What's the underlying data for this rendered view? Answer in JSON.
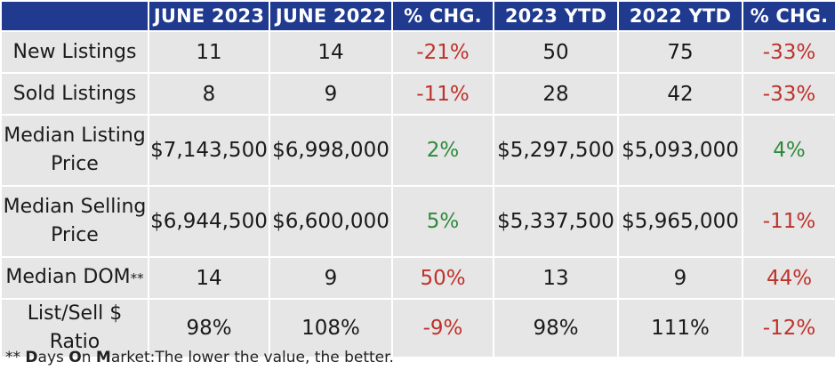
{
  "header": [
    "",
    "JUNE 2023",
    "JUNE 2022",
    "% CHG.",
    "2023 YTD",
    "2022 YTD",
    "% CHG."
  ],
  "rows": [
    {
      "label": "New Listings",
      "cells": [
        "11",
        "14",
        "-21%",
        "50",
        "75",
        "-33%"
      ]
    },
    {
      "label": "Sold Listings",
      "cells": [
        "8",
        "9",
        "-11%",
        "28",
        "42",
        "-33%"
      ]
    },
    {
      "label": "Median Listing Price",
      "cells": [
        "$7,143,500",
        "$6,998,000",
        "2%",
        "$5,297,500",
        "$5,093,000",
        "4%"
      ]
    },
    {
      "label": "Median Selling Price",
      "cells": [
        "$6,944,500",
        "$6,600,000",
        "5%",
        "$5,337,500",
        "$5,965,000",
        "-11%"
      ]
    },
    {
      "label": "Median DOM",
      "label_mark": "**",
      "cells": [
        "14",
        "9",
        "50%",
        "13",
        "9",
        "44%"
      ]
    },
    {
      "label": "List/Sell $ Ratio",
      "cells": [
        "98%",
        "108%",
        "-9%",
        "98%",
        "111%",
        "-12%"
      ]
    }
  ],
  "footnote": {
    "marker": "**",
    "d": "D",
    "ays": "ays ",
    "o": "O",
    "n": "n ",
    "m": "M",
    "arket": "arket:",
    "rest": "The lower the value, the better."
  },
  "colors": {
    "header_bg": "#1f3a8f",
    "cell_bg": "#e6e6e6",
    "negative": "#c0312b",
    "positive": "#2e8a3a"
  }
}
